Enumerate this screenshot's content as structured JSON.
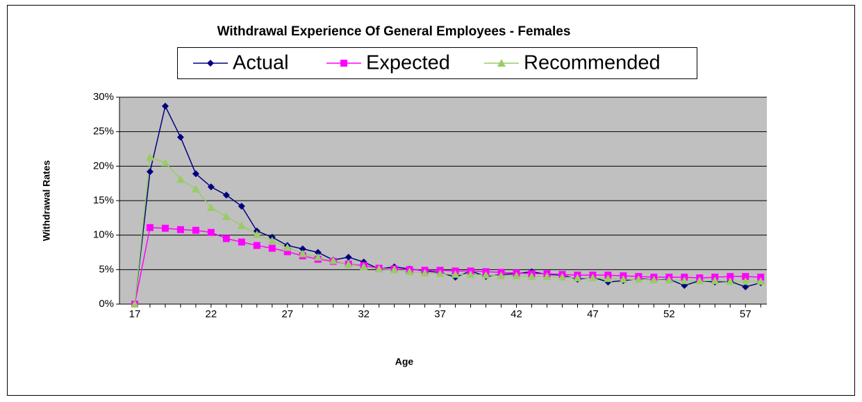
{
  "chart_data": {
    "type": "line",
    "title": "Withdrawal Experience Of  General Employees - Females",
    "xlabel": "Age",
    "ylabel": "Withdrawal  Rates",
    "x": [
      17,
      18,
      19,
      20,
      21,
      22,
      23,
      24,
      25,
      26,
      27,
      28,
      29,
      30,
      31,
      32,
      33,
      34,
      35,
      36,
      37,
      38,
      39,
      40,
      41,
      42,
      43,
      44,
      45,
      46,
      47,
      48,
      49,
      50,
      51,
      52,
      53,
      54,
      55,
      56,
      57,
      58
    ],
    "series": [
      {
        "name": "Actual",
        "color": "#000080",
        "marker": "diamond",
        "values": [
          0,
          19.2,
          28.7,
          24.2,
          18.9,
          17,
          15.8,
          14.2,
          10.6,
          9.7,
          8.5,
          8,
          7.5,
          6.4,
          6.8,
          6.1,
          5.1,
          5.4,
          5.1,
          4.8,
          4.6,
          3.9,
          4.8,
          4,
          4.3,
          4.4,
          4.7,
          4.3,
          4.2,
          3.6,
          3.9,
          3.2,
          3.4,
          3.7,
          3.5,
          3.6,
          2.7,
          3.4,
          3.2,
          3.3,
          2.5,
          3.1
        ]
      },
      {
        "name": "Expected",
        "color": "#FF00FF",
        "marker": "square",
        "values": [
          0,
          11.1,
          11,
          10.8,
          10.7,
          10.4,
          9.5,
          9,
          8.5,
          8.1,
          7.6,
          7,
          6.5,
          6.2,
          5.8,
          5.6,
          5.2,
          5.1,
          5,
          4.9,
          4.9,
          4.8,
          4.8,
          4.7,
          4.6,
          4.5,
          4.4,
          4.4,
          4.3,
          4.2,
          4.2,
          4.2,
          4.1,
          4,
          3.9,
          3.9,
          3.9,
          3.8,
          3.9,
          4,
          4,
          3.9
        ]
      },
      {
        "name": "Recommended",
        "color": "#99CC66",
        "marker": "triangle",
        "values": [
          0,
          21.3,
          20.5,
          18.1,
          16.7,
          14,
          12.7,
          11.4,
          10.1,
          9.2,
          8.2,
          7.3,
          6.8,
          6.3,
          5.8,
          5.4,
          5.1,
          5,
          4.7,
          4.5,
          4.4,
          4.3,
          4.3,
          4.2,
          4.1,
          4.1,
          4,
          4,
          3.9,
          3.8,
          3.8,
          3.7,
          3.6,
          3.6,
          3.5,
          3.5,
          3.4,
          3.4,
          3.4,
          3.3,
          3.3,
          3.3
        ]
      }
    ],
    "xlim": [
      16,
      58.4
    ],
    "xticks": [
      17,
      22,
      27,
      32,
      37,
      42,
      47,
      52,
      57
    ],
    "ylim": [
      0,
      30
    ],
    "yticks": [
      {
        "value": 0,
        "label": "0%"
      },
      {
        "value": 5,
        "label": "5%"
      },
      {
        "value": 10,
        "label": "10%"
      },
      {
        "value": 15,
        "label": "15%"
      },
      {
        "value": 20,
        "label": "20%"
      },
      {
        "value": 25,
        "label": "25%"
      },
      {
        "value": 30,
        "label": "30%"
      }
    ],
    "grid": true,
    "legend": "top"
  }
}
